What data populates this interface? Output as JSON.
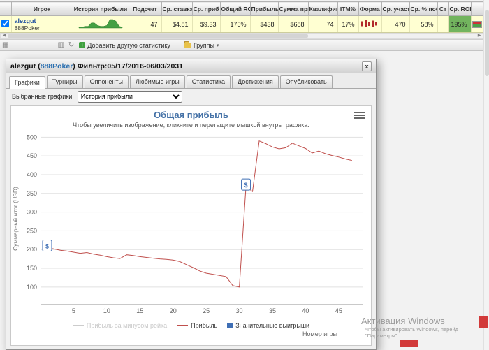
{
  "table": {
    "headers": [
      "",
      "Игрок",
      "История прибыли",
      "Подсчет",
      "Ср. ставка",
      "Ср. приб",
      "Общий ROI",
      "Прибыль",
      "Сумма приз",
      "Квалифика",
      "ITM%",
      "Форма",
      "Ср. участ",
      "Ср. % побе",
      "Ст",
      "Ср. ROI",
      ""
    ],
    "row": {
      "player_name": "alezgut",
      "player_site": "888Poker",
      "profit_sparkline": [
        1,
        1,
        2,
        2,
        6,
        6,
        3,
        2,
        2,
        3,
        10,
        10,
        8,
        2,
        1
      ],
      "count": "47",
      "avg_stake": "$4.81",
      "avg_profit": "$9.33",
      "total_roi": "175%",
      "profit": "$438",
      "prize_sum": "$688",
      "qualify": "74",
      "itm_pct": "17%",
      "form_bars": [
        7,
        10,
        6,
        9,
        5
      ],
      "avg_entrants": "470",
      "avg_win_pct": "58%",
      "st_value": "",
      "avg_roi": "195%",
      "avg_roi_bg": "#72b45e",
      "flag": {
        "top": "#ce3036",
        "bottom": "#4aa348"
      }
    }
  },
  "toolbar": {
    "add_stat_label": "Добавить другую статистику",
    "groups_label": "Группы"
  },
  "dialog": {
    "title_prefix": "alezgut (",
    "title_site": "888Poker",
    "title_suffix": ") Фильтр:05/17/2016-06/03/2031",
    "close_label": "x",
    "tabs": [
      "Графики",
      "Турниры",
      "Оппоненты",
      "Любимые игры",
      "Статистика",
      "Достижения",
      "Опубликовать"
    ],
    "active_tab": "Графики",
    "selected_graphs_label": "Выбранные графики:",
    "graph_select_value": "История прибыли"
  },
  "chart_data": {
    "type": "line",
    "title": "Общая прибыль",
    "subtitle": "Чтобы увеличить изображение, кликните и перетащите мышкой внутрь графика.",
    "xlabel": "Номер игры",
    "ylabel": "Суммарный итог (USD)",
    "xlim": [
      0,
      48.6
    ],
    "ylim": [
      55,
      510
    ],
    "xticks": [
      5,
      10,
      15,
      20,
      25,
      30,
      35,
      40,
      45
    ],
    "yticks": [
      100,
      150,
      200,
      250,
      300,
      350,
      400,
      450,
      500
    ],
    "grid": "horizontal",
    "legend_position": "bottom",
    "series": [
      {
        "name": "Прибыль за минусом рейка",
        "color": "#cccccc",
        "visible": false,
        "x_start": 1,
        "values": []
      },
      {
        "name": "Прибыль",
        "color": "#c0504d",
        "visible": true,
        "x_start": 1,
        "values": [
          205,
          202,
          198,
          196,
          193,
          190,
          192,
          188,
          185,
          181,
          178,
          176,
          186,
          184,
          181,
          179,
          177,
          175,
          174,
          172,
          168,
          160,
          152,
          143,
          137,
          134,
          131,
          128,
          104,
          100,
          368,
          355,
          490,
          483,
          474,
          469,
          472,
          484,
          477,
          470,
          458,
          463,
          456,
          451,
          447,
          442,
          438
        ]
      }
    ],
    "big_win_markers": [
      {
        "x": 1,
        "y": 205
      },
      {
        "x": 31,
        "y": 368
      }
    ],
    "marker_label": "$",
    "marker_color": "#3f6fb5",
    "legend": [
      {
        "label": "Прибыль за минусом рейка",
        "symbol": "line",
        "color": "#cccccc",
        "disabled": true
      },
      {
        "label": "Прибыль",
        "symbol": "line",
        "color": "#c0504d",
        "disabled": false
      },
      {
        "label": "Значительные выигрыши",
        "symbol": "square",
        "color": "#3f6fb5",
        "disabled": false
      }
    ]
  },
  "watermark": {
    "title": "Активация Windows",
    "line1": "Чтобы активировать Windows, перейд",
    "line2": "\"Параметры\"."
  }
}
